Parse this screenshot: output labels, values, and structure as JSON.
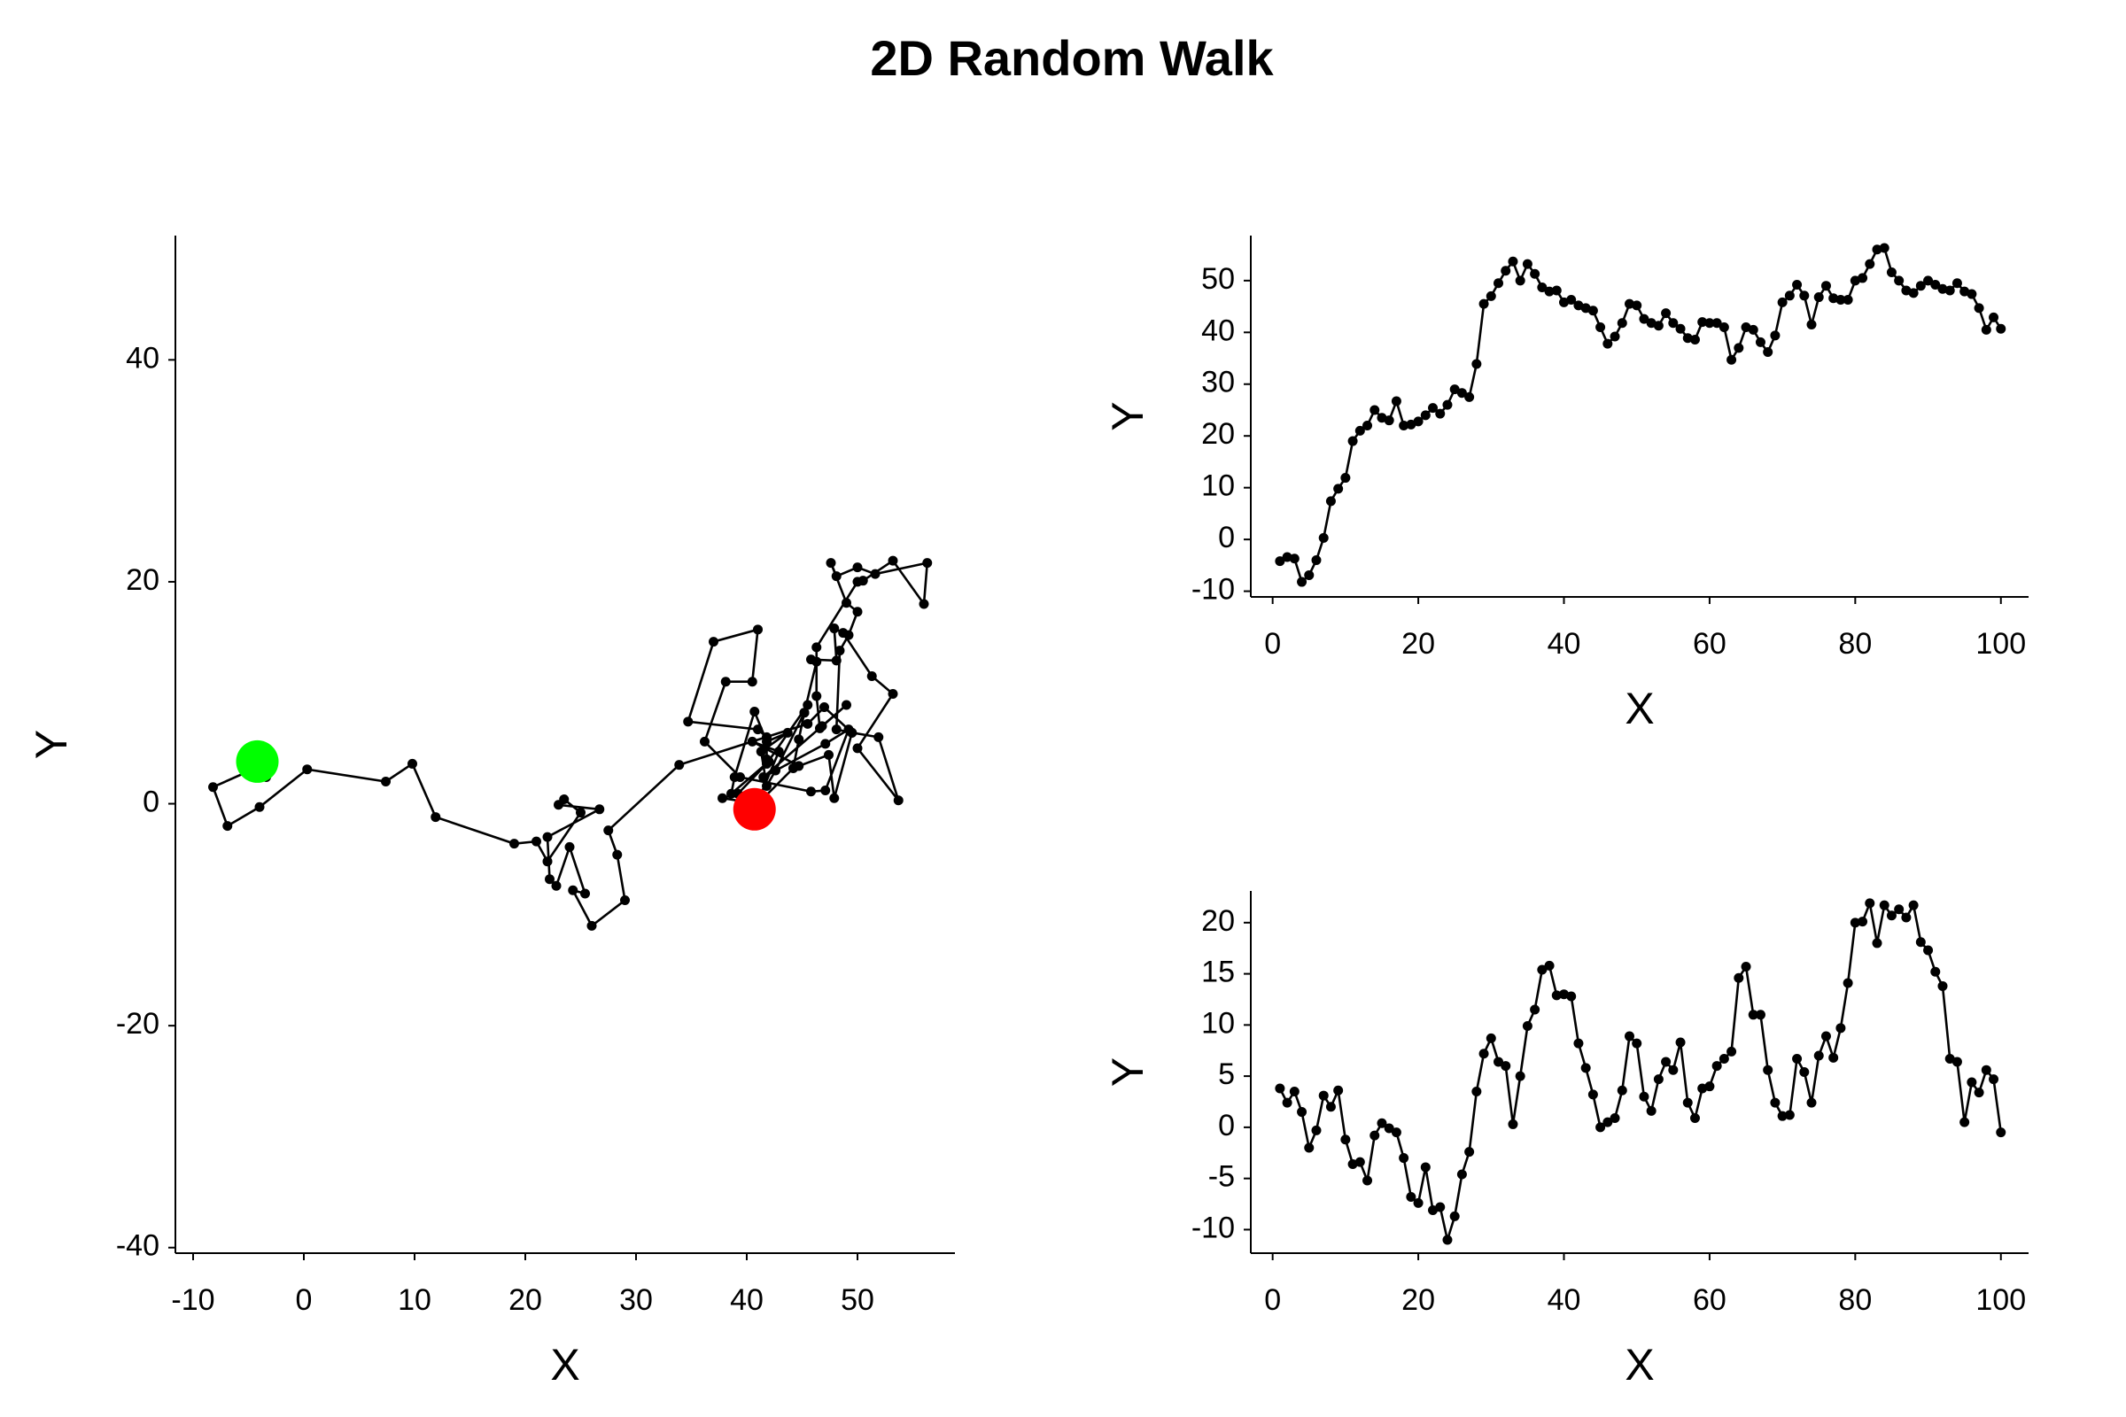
{
  "title": "2D Random Walk",
  "chart_data": [
    {
      "type": "line",
      "xlabel": "X",
      "ylabel": "Y",
      "color": "#000000",
      "start_marker_color": "#00ff00",
      "end_marker_color": "#ff0000",
      "xlim": [
        -11.6,
        58.8
      ],
      "ylim": [
        -40.5,
        51.2
      ],
      "xticks": [
        -10,
        0,
        10,
        20,
        30,
        40,
        50
      ],
      "yticks": [
        -40,
        -20,
        0,
        20,
        40
      ],
      "x": [
        -4.2,
        -3.4,
        -3.7,
        -8.2,
        -6.9,
        -4,
        0.3,
        7.4,
        9.8,
        11.9,
        19,
        21,
        22,
        25,
        23.5,
        23,
        26.7,
        22,
        22.2,
        22.8,
        24,
        25.4,
        24.3,
        26,
        29,
        28.3,
        27.5,
        33.9,
        45.5,
        47,
        49.5,
        51.9,
        53.7,
        50,
        53.2,
        51.3,
        48.7,
        47.9,
        48.1,
        45.8,
        46.3,
        45.2,
        44.7,
        44.2,
        41,
        37.8,
        39.2,
        41.8,
        45.5,
        45.2,
        42.6,
        41.8,
        41.3,
        43.7,
        41.8,
        40.7,
        38.9,
        38.6,
        42,
        41.8,
        41.8,
        41,
        34.7,
        37,
        41,
        40.5,
        38.1,
        36.2,
        39.4,
        45.8,
        47.1,
        49.2,
        47.1,
        41.5,
        46.8,
        49,
        46.6,
        46.3,
        46.3,
        50,
        50.5,
        53.2,
        56,
        56.3,
        51.6,
        50,
        48.1,
        47.6,
        49,
        50,
        49.2,
        48.4,
        48.1,
        49.5,
        47.9,
        47.4,
        44.7,
        40.5,
        42.9,
        40.7
      ],
      "values": [
        3.8,
        2.4,
        3.5,
        1.5,
        -2,
        -0.3,
        3.1,
        2,
        3.6,
        -1.2,
        -3.6,
        -3.4,
        -5.2,
        -0.8,
        0.4,
        -0.1,
        -0.5,
        -3,
        -6.8,
        -7.4,
        -3.9,
        -8.1,
        -7.8,
        -11,
        -8.7,
        -4.6,
        -2.4,
        3.5,
        7.2,
        8.7,
        6.4,
        6,
        0.3,
        5,
        9.9,
        11.5,
        15.4,
        15.8,
        12.9,
        13,
        12.8,
        8.2,
        5.8,
        3.2,
        0,
        0.5,
        0.9,
        3.6,
        8.9,
        8.2,
        3,
        1.6,
        4.7,
        6.4,
        5.6,
        8.3,
        2.4,
        0.9,
        3.8,
        4,
        6,
        6.7,
        7.4,
        14.6,
        15.7,
        11,
        11,
        5.6,
        2.4,
        1.1,
        1.2,
        6.7,
        5.4,
        2.4,
        7,
        8.9,
        6.8,
        9.7,
        14.1,
        20,
        20.1,
        21.9,
        18,
        21.7,
        20.7,
        21.3,
        20.5,
        21.7,
        18.1,
        17.3,
        15.2,
        13.8,
        6.7,
        6.4,
        0.5,
        4.4,
        3.4,
        5.6,
        4.7,
        -0.5
      ]
    },
    {
      "type": "line",
      "xlabel": "X",
      "ylabel": "Y",
      "color": "#000000",
      "xlim": [
        -3,
        103.8
      ],
      "ylim": [
        -11.1,
        58.7
      ],
      "xticks": [
        0,
        20,
        40,
        60,
        80,
        100
      ],
      "yticks": [
        -10,
        0,
        10,
        20,
        30,
        40,
        50
      ],
      "x": [
        1,
        2,
        3,
        4,
        5,
        6,
        7,
        8,
        9,
        10,
        11,
        12,
        13,
        14,
        15,
        16,
        17,
        18,
        19,
        20,
        21,
        22,
        23,
        24,
        25,
        26,
        27,
        28,
        29,
        30,
        31,
        32,
        33,
        34,
        35,
        36,
        37,
        38,
        39,
        40,
        41,
        42,
        43,
        44,
        45,
        46,
        47,
        48,
        49,
        50,
        51,
        52,
        53,
        54,
        55,
        56,
        57,
        58,
        59,
        60,
        61,
        62,
        63,
        64,
        65,
        66,
        67,
        68,
        69,
        70,
        71,
        72,
        73,
        74,
        75,
        76,
        77,
        78,
        79,
        80,
        81,
        82,
        83,
        84,
        85,
        86,
        87,
        88,
        89,
        90,
        91,
        92,
        93,
        94,
        95,
        96,
        97,
        98,
        99,
        100
      ],
      "values": [
        -4.2,
        -3.4,
        -3.7,
        -8.2,
        -6.9,
        -4,
        0.3,
        7.4,
        9.8,
        11.9,
        19,
        21,
        22,
        25,
        23.5,
        23,
        26.7,
        22,
        22.2,
        22.8,
        24,
        25.4,
        24.3,
        26,
        29,
        28.3,
        27.5,
        33.9,
        45.5,
        47,
        49.5,
        51.9,
        53.7,
        50,
        53.2,
        51.3,
        48.7,
        47.9,
        48.1,
        45.8,
        46.3,
        45.2,
        44.7,
        44.2,
        41,
        37.8,
        39.2,
        41.8,
        45.5,
        45.2,
        42.6,
        41.8,
        41.3,
        43.7,
        41.8,
        40.7,
        38.9,
        38.6,
        42,
        41.8,
        41.8,
        41,
        34.7,
        37,
        41,
        40.5,
        38.1,
        36.2,
        39.4,
        45.8,
        47.1,
        49.2,
        47.1,
        41.5,
        46.8,
        49,
        46.6,
        46.3,
        46.3,
        50,
        50.5,
        53.2,
        56,
        56.3,
        51.6,
        50,
        48.1,
        47.6,
        49,
        50,
        49.2,
        48.4,
        48.1,
        49.5,
        47.9,
        47.4,
        44.7,
        40.5,
        42.9,
        40.7
      ]
    },
    {
      "type": "line",
      "xlabel": "X",
      "ylabel": "Y",
      "color": "#000000",
      "xlim": [
        -3,
        103.8
      ],
      "ylim": [
        -12.3,
        23.1
      ],
      "xticks": [
        0,
        20,
        40,
        60,
        80,
        100
      ],
      "yticks": [
        -10,
        -5,
        0,
        5,
        10,
        15,
        20
      ],
      "x": [
        1,
        2,
        3,
        4,
        5,
        6,
        7,
        8,
        9,
        10,
        11,
        12,
        13,
        14,
        15,
        16,
        17,
        18,
        19,
        20,
        21,
        22,
        23,
        24,
        25,
        26,
        27,
        28,
        29,
        30,
        31,
        32,
        33,
        34,
        35,
        36,
        37,
        38,
        39,
        40,
        41,
        42,
        43,
        44,
        45,
        46,
        47,
        48,
        49,
        50,
        51,
        52,
        53,
        54,
        55,
        56,
        57,
        58,
        59,
        60,
        61,
        62,
        63,
        64,
        65,
        66,
        67,
        68,
        69,
        70,
        71,
        72,
        73,
        74,
        75,
        76,
        77,
        78,
        79,
        80,
        81,
        82,
        83,
        84,
        85,
        86,
        87,
        88,
        89,
        90,
        91,
        92,
        93,
        94,
        95,
        96,
        97,
        98,
        99,
        100
      ],
      "values": [
        3.8,
        2.4,
        3.5,
        1.5,
        -2,
        -0.3,
        3.1,
        2,
        3.6,
        -1.2,
        -3.6,
        -3.4,
        -5.2,
        -0.8,
        0.4,
        -0.1,
        -0.5,
        -3,
        -6.8,
        -7.4,
        -3.9,
        -8.1,
        -7.8,
        -11,
        -8.7,
        -4.6,
        -2.4,
        3.5,
        7.2,
        8.7,
        6.4,
        6,
        0.3,
        5,
        9.9,
        11.5,
        15.4,
        15.8,
        12.9,
        13,
        12.8,
        8.2,
        5.8,
        3.2,
        0,
        0.5,
        0.9,
        3.6,
        8.9,
        8.2,
        3,
        1.6,
        4.7,
        6.4,
        5.6,
        8.3,
        2.4,
        0.9,
        3.8,
        4,
        6,
        6.7,
        7.4,
        14.6,
        15.7,
        11,
        11,
        5.6,
        2.4,
        1.1,
        1.2,
        6.7,
        5.4,
        2.4,
        7,
        8.9,
        6.8,
        9.7,
        14.1,
        20,
        20.1,
        21.9,
        18,
        21.7,
        20.7,
        21.3,
        20.5,
        21.7,
        18.1,
        17.3,
        15.2,
        13.8,
        6.7,
        6.4,
        0.5,
        4.4,
        3.4,
        5.6,
        4.7,
        -0.5
      ]
    }
  ]
}
